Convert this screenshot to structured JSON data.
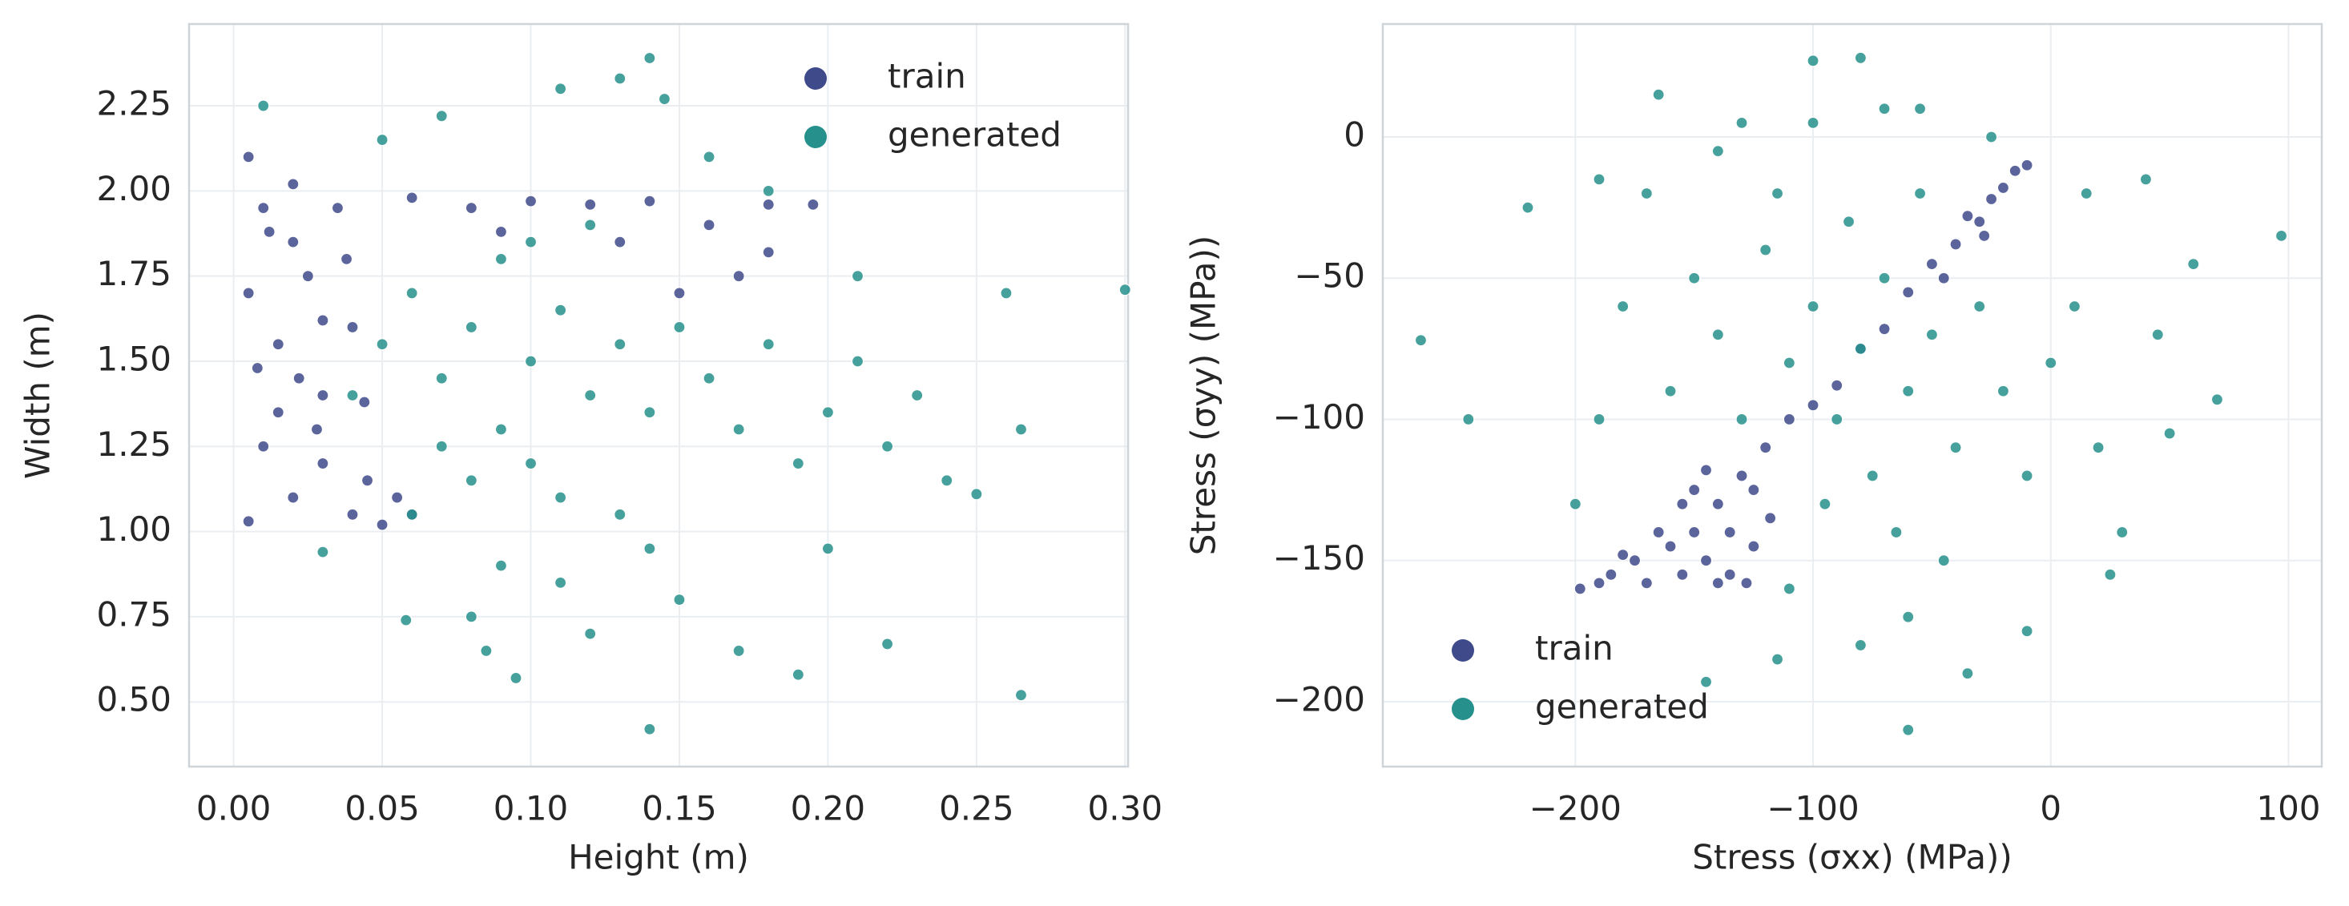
{
  "chart_data": [
    {
      "type": "scatter",
      "xlabel": "Height (m)",
      "ylabel": "Width (m)",
      "xlim": [
        -0.015,
        0.301
      ],
      "ylim": [
        0.31,
        2.49
      ],
      "grid": true,
      "legend": "upper right",
      "xticks": [
        {
          "value": 0,
          "label": "0.00"
        },
        0.05,
        {
          "value": 0.1,
          "label": "0.10"
        },
        0.15,
        {
          "value": 0.2,
          "label": "0.20"
        },
        0.25,
        {
          "value": 0.3,
          "label": "0.30"
        }
      ],
      "yticks": [
        {
          "value": 0.5,
          "label": "0.50"
        },
        0.75,
        {
          "value": 1,
          "label": "1.00"
        },
        1.25,
        {
          "value": 1.5,
          "label": "1.50"
        },
        1.75,
        {
          "value": 2,
          "label": "2.00"
        },
        2.25
      ],
      "series": [
        {
          "name": "train",
          "color": "#3e4a89",
          "x": [
            0.005,
            0.01,
            0.02,
            0.005,
            0.015,
            0.03,
            0.01,
            0.02,
            0.005,
            0.04,
            0.035,
            0.025,
            0.04,
            0.015,
            0.03,
            0.045,
            0.02,
            0.008,
            0.038,
            0.028,
            0.05,
            0.06,
            0.08,
            0.1,
            0.12,
            0.14,
            0.16,
            0.18,
            0.195,
            0.17,
            0.18,
            0.15,
            0.13,
            0.09,
            0.055,
            0.03,
            0.012,
            0.022,
            0.044,
            0.06
          ],
          "values": [
            2.1,
            1.95,
            1.85,
            1.7,
            1.55,
            1.4,
            1.25,
            1.1,
            1.03,
            1.05,
            1.95,
            1.75,
            1.6,
            1.35,
            1.2,
            1.15,
            2.02,
            1.48,
            1.8,
            1.3,
            1.02,
            1.98,
            1.95,
            1.97,
            1.96,
            1.97,
            1.9,
            1.96,
            1.96,
            1.75,
            1.82,
            1.7,
            1.85,
            1.88,
            1.1,
            1.62,
            1.88,
            1.45,
            1.38,
            1.05
          ]
        },
        {
          "name": "generated",
          "color": "#26918c",
          "x": [
            0.1,
            0.08,
            0.12,
            0.09,
            0.11,
            0.07,
            0.13,
            0.1,
            0.06,
            0.14,
            0.05,
            0.15,
            0.11,
            0.09,
            0.12,
            0.08,
            0.16,
            0.07,
            0.13,
            0.1,
            0.17,
            0.04,
            0.18,
            0.06,
            0.14,
            0.11,
            0.09,
            0.19,
            0.2,
            0.21,
            0.22,
            0.15,
            0.08,
            0.12,
            0.17,
            0.2,
            0.23,
            0.24,
            0.25,
            0.26,
            0.265,
            0.3,
            0.14,
            0.095,
            0.085,
            0.19,
            0.22,
            0.01,
            0.07,
            0.11,
            0.14,
            0.145,
            0.13,
            0.16,
            0.05,
            0.03,
            0.058,
            0.18,
            0.21,
            0.265
          ],
          "values": [
            1.5,
            1.6,
            1.4,
            1.3,
            1.65,
            1.45,
            1.55,
            1.2,
            1.7,
            1.35,
            1.55,
            1.6,
            1.1,
            1.8,
            1.9,
            1.15,
            1.45,
            1.25,
            1.05,
            1.85,
            1.3,
            1.4,
            1.55,
            1.05,
            0.95,
            0.85,
            0.9,
            1.2,
            1.35,
            1.5,
            1.25,
            0.8,
            0.75,
            0.7,
            0.65,
            0.95,
            1.4,
            1.15,
            1.11,
            1.7,
            0.52,
            1.71,
            0.42,
            0.57,
            0.65,
            0.58,
            0.67,
            2.25,
            2.22,
            2.3,
            2.39,
            2.27,
            2.33,
            2.1,
            2.15,
            0.94,
            0.74,
            2.0,
            1.75,
            1.3
          ]
        }
      ]
    },
    {
      "type": "scatter",
      "xlabel": "Stress (σxx) (MPa))",
      "ylabel": "Stress (σyy) (MPa))",
      "xlim": [
        -281,
        114
      ],
      "ylim": [
        -223,
        40
      ],
      "grid": true,
      "legend": "lower left",
      "xticks": [
        {
          "value": -200,
          "label": "−200"
        },
        {
          "value": -100,
          "label": "−100"
        },
        0,
        100
      ],
      "yticks": [
        {
          "value": -200,
          "label": "−200"
        },
        {
          "value": -150,
          "label": "−150"
        },
        {
          "value": -100,
          "label": "−100"
        },
        {
          "value": -50,
          "label": "−50"
        },
        0
      ],
      "series": [
        {
          "name": "train",
          "color": "#3e4a89",
          "x": [
            -198,
            -185,
            -175,
            -170,
            -160,
            -155,
            -150,
            -145,
            -140,
            -135,
            -130,
            -125,
            -120,
            -140,
            -165,
            -150,
            -135,
            -128,
            -118,
            -110,
            -100,
            -90,
            -80,
            -70,
            -60,
            -50,
            -40,
            -30,
            -25,
            -20,
            -15,
            -10,
            -35,
            -28,
            -45,
            -155,
            -180,
            -145,
            -190,
            -125
          ],
          "values": [
            -160,
            -155,
            -150,
            -158,
            -145,
            -155,
            -140,
            -150,
            -130,
            -155,
            -120,
            -145,
            -110,
            -158,
            -140,
            -125,
            -140,
            -158,
            -135,
            -100,
            -95,
            -88,
            -75,
            -68,
            -55,
            -45,
            -38,
            -30,
            -22,
            -18,
            -12,
            -10,
            -28,
            -35,
            -50,
            -130,
            -148,
            -118,
            -158,
            -125
          ]
        },
        {
          "name": "generated",
          "color": "#26918c",
          "x": [
            -80,
            -100,
            -60,
            -90,
            -70,
            -110,
            -50,
            -120,
            -40,
            -130,
            -30,
            -85,
            -75,
            -140,
            -20,
            -95,
            -55,
            -115,
            -65,
            -10,
            0,
            -150,
            -160,
            -45,
            -100,
            -70,
            -130,
            -60,
            -80,
            -110,
            10,
            20,
            30,
            -170,
            -180,
            -190,
            -200,
            -220,
            -245,
            -265,
            -165,
            -100,
            -80,
            -55,
            -25,
            40,
            45,
            60,
            70,
            97,
            50,
            -60,
            -145,
            -115,
            25,
            -10,
            -190,
            -140,
            15,
            -35
          ],
          "values": [
            -75,
            -60,
            -90,
            -100,
            -50,
            -80,
            -70,
            -40,
            -110,
            -100,
            -60,
            -30,
            -120,
            -70,
            -90,
            -130,
            -20,
            -20,
            -140,
            -120,
            -80,
            -50,
            -90,
            -150,
            5,
            10,
            5,
            -170,
            -180,
            -160,
            -60,
            -110,
            -140,
            -20,
            -60,
            -100,
            -130,
            -25,
            -100,
            -72,
            15,
            27,
            28,
            10,
            0,
            -15,
            -70,
            -45,
            -93,
            -35,
            -105,
            -210,
            -193,
            -185,
            -155,
            -175,
            -15,
            -5,
            -20,
            -190
          ]
        }
      ]
    }
  ]
}
